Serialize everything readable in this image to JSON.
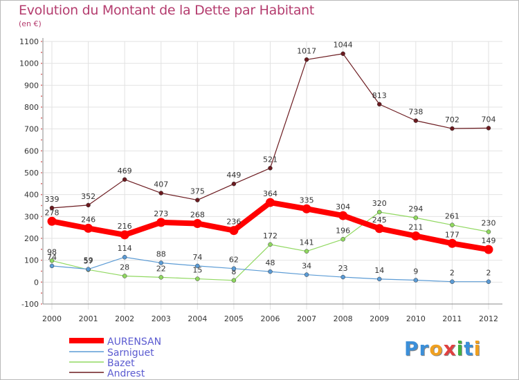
{
  "chart_data": {
    "type": "line",
    "title": "Evolution du Montant de la Dette par Habitant",
    "subtitle": "(en €)",
    "x": [
      "2000",
      "2001",
      "2002",
      "2003",
      "2004",
      "2005",
      "2006",
      "2007",
      "2008",
      "2009",
      "2010",
      "2011",
      "2012"
    ],
    "ylim": [
      -100,
      1100
    ],
    "yticks": [
      -100,
      0,
      100,
      200,
      300,
      400,
      500,
      600,
      700,
      800,
      900,
      1000,
      1100
    ],
    "grid": true,
    "legend_position": "bottom-left",
    "series": [
      {
        "name": "Andrest",
        "color": "#6b1a1f",
        "values": [
          339,
          352,
          469,
          407,
          375,
          449,
          521,
          1017,
          1044,
          813,
          738,
          702,
          704
        ]
      },
      {
        "name": "Bazet",
        "color": "#90d860",
        "values": [
          98,
          57,
          28,
          22,
          15,
          8,
          172,
          141,
          196,
          320,
          294,
          261,
          230
        ]
      },
      {
        "name": "Sarniguet",
        "color": "#5b9bd5",
        "values": [
          74,
          59,
          114,
          88,
          74,
          62,
          48,
          34,
          23,
          14,
          9,
          2,
          2
        ]
      },
      {
        "name": "AURENSAN",
        "color": "#ff0000",
        "values": [
          278,
          246,
          216,
          273,
          268,
          236,
          364,
          335,
          304,
          245,
          211,
          177,
          149
        ]
      }
    ],
    "legend": [
      "AURENSAN",
      "Sarniguet",
      "Bazet",
      "Andrest"
    ]
  },
  "logo": {
    "letters": [
      {
        "ch": "P",
        "color": "#3b8fd9"
      },
      {
        "ch": "r",
        "color": "#3b8fd9"
      },
      {
        "ch": "o",
        "color": "#f0a020"
      },
      {
        "ch": "x",
        "color": "#e04040"
      },
      {
        "ch": "i",
        "color": "#40b040"
      },
      {
        "ch": "t",
        "color": "#3b8fd9"
      },
      {
        "ch": "i",
        "color": "#f0a020"
      }
    ]
  }
}
